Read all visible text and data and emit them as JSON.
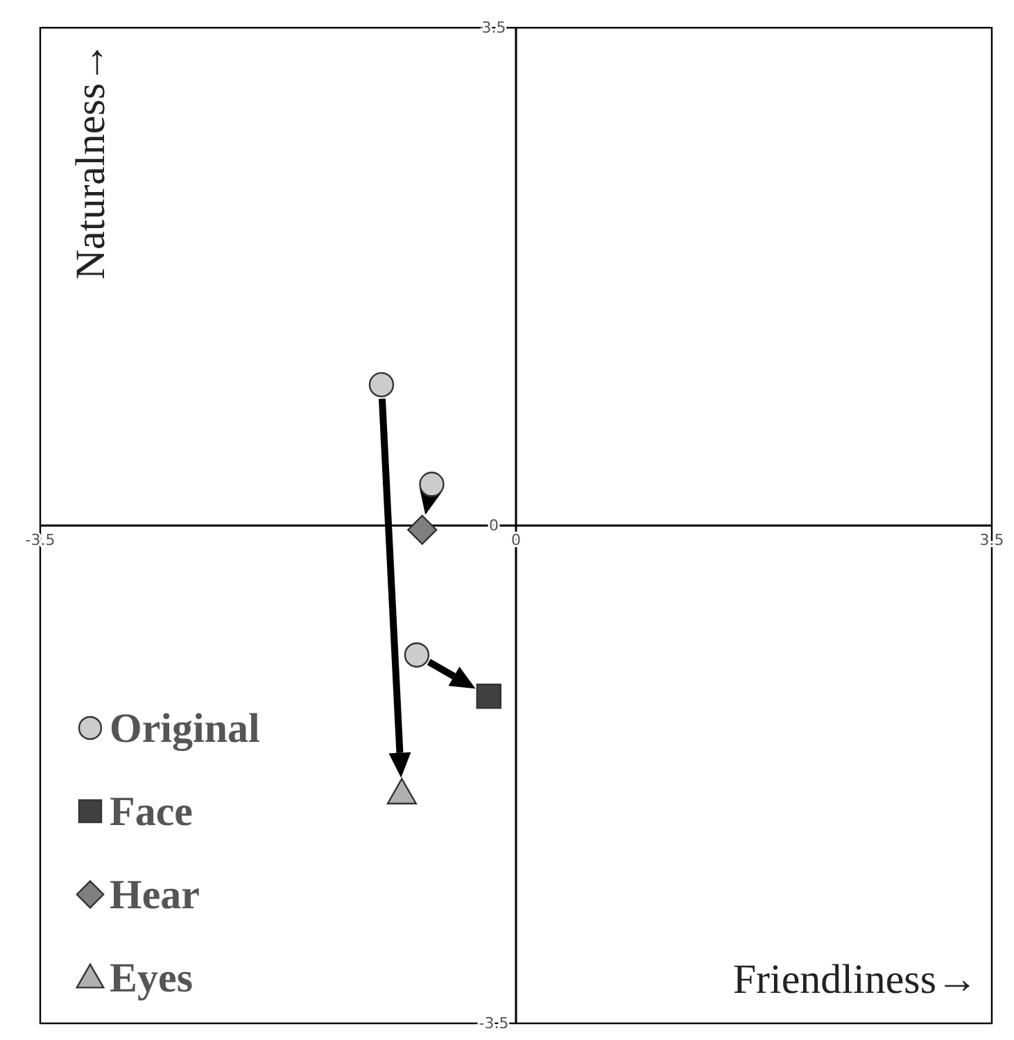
{
  "chart_data": {
    "type": "scatter",
    "xlabel": "Friendliness→",
    "ylabel": "Naturalness→",
    "xlim": [
      -3.5,
      3.5
    ],
    "ylim": [
      -3.5,
      3.5
    ],
    "xticks": [
      -3.5,
      0,
      3.5
    ],
    "yticks": [
      -3.5,
      0,
      3.5
    ],
    "grid": false,
    "legend": "bottom left",
    "series": [
      {
        "name": "Original",
        "color": "#cccccc",
        "marker": "circle",
        "x": [
          -0.73,
          -0.62,
          -0.99
        ],
        "values": [
          -0.91,
          0.29,
          0.99
        ]
      },
      {
        "name": "Face",
        "color": "#404040",
        "marker": "square",
        "x": [
          -0.2
        ],
        "values": [
          -1.2
        ]
      },
      {
        "name": "Hear",
        "color": "#808080",
        "marker": "diamond",
        "x": [
          -0.69
        ],
        "values": [
          -0.03
        ]
      },
      {
        "name": "Eyes",
        "color": "#b0b0b0",
        "marker": "triangle",
        "x": [
          -0.84
        ],
        "values": [
          -1.88
        ]
      }
    ]
  }
}
